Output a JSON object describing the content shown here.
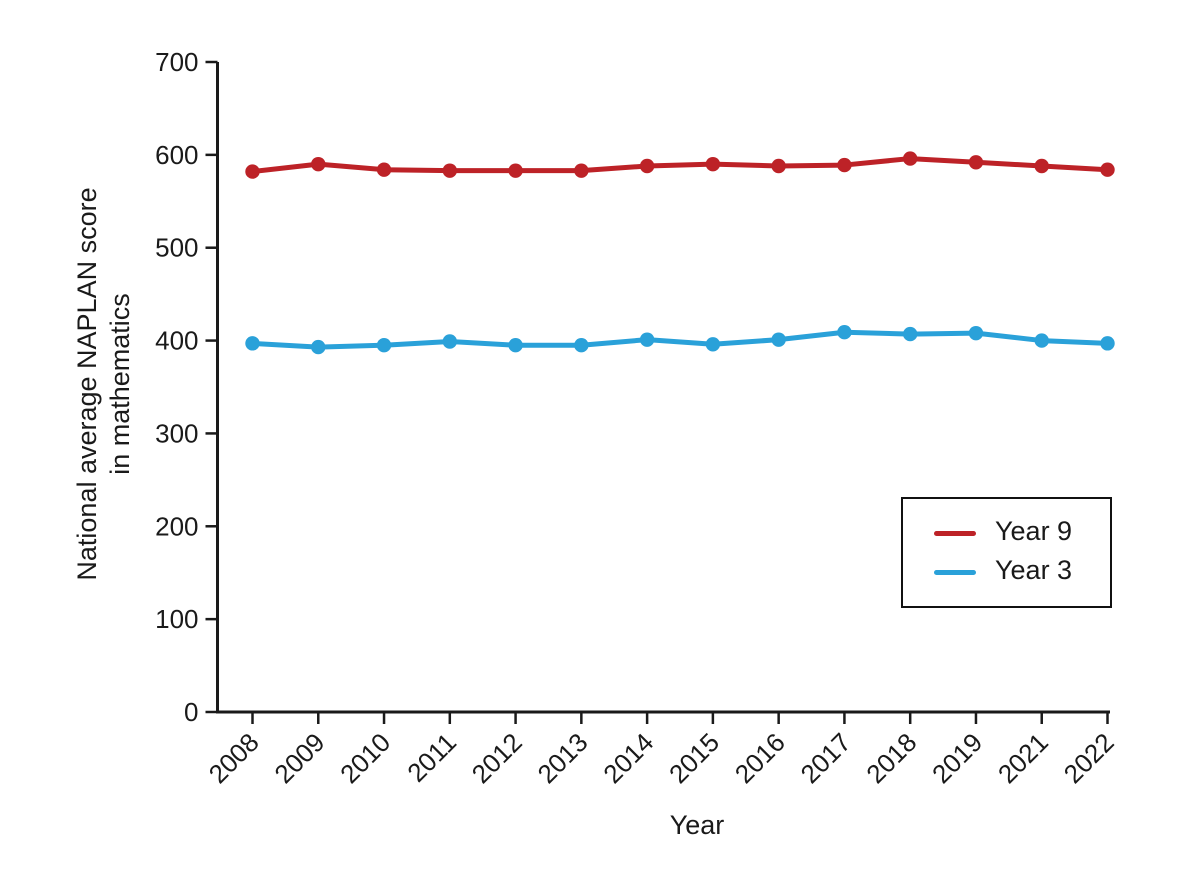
{
  "figure": {
    "background": "#ffffff",
    "text_color": "#1a1a1a",
    "axis_color": "#1a1a1a"
  },
  "chart_data": {
    "type": "line",
    "title": "",
    "xlabel": "Year",
    "ylabel_lines": [
      "National average NAPLAN score",
      "in mathematics"
    ],
    "categories": [
      "2008",
      "2009",
      "2010",
      "2011",
      "2012",
      "2013",
      "2014",
      "2015",
      "2016",
      "2017",
      "2018",
      "2019",
      "2021",
      "2022"
    ],
    "series": [
      {
        "name": "Year 9",
        "color": "#bd2227",
        "values": [
          582,
          590,
          584,
          583,
          583,
          583,
          588,
          590,
          588,
          589,
          596,
          592,
          588,
          584
        ]
      },
      {
        "name": "Year 3",
        "color": "#2aa1d9",
        "values": [
          397,
          393,
          395,
          399,
          395,
          395,
          401,
          396,
          401,
          409,
          407,
          408,
          400,
          397
        ]
      }
    ],
    "ylim": [
      0,
      700
    ],
    "yticks": [
      0,
      100,
      200,
      300,
      400,
      500,
      600,
      700
    ],
    "grid": false,
    "legend_position": "right-middle",
    "x_tick_rotation_deg": 45,
    "marker": "circle"
  }
}
